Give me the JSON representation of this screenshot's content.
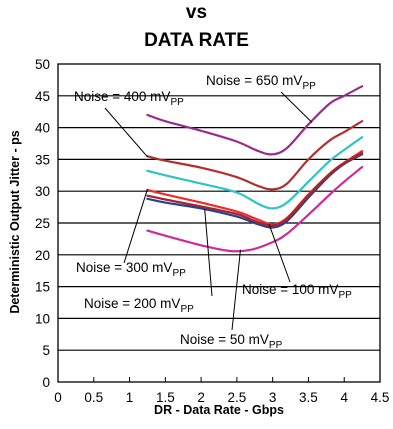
{
  "title_lines": [
    "vs",
    "DATA RATE"
  ],
  "chart_data": {
    "type": "line",
    "xlabel": "DR - Data Rate - Gbps",
    "ylabel": "Deterministic Output Jitter - ps",
    "xlim": [
      0,
      4.5
    ],
    "ylim": [
      0,
      50
    ],
    "xticks": [
      "0",
      "0.5",
      "1",
      "1.5",
      "2",
      "2.5",
      "3",
      "3.5",
      "4",
      "4.5"
    ],
    "yticks": [
      "0",
      "5",
      "10",
      "15",
      "20",
      "25",
      "30",
      "35",
      "40",
      "45",
      "50"
    ],
    "grid": "horizontal",
    "series": [
      {
        "name": "Noise = 650 mV",
        "sub": "PP",
        "color": "#9b2b8f",
        "x": [
          1.25,
          1.5,
          2.0,
          2.5,
          2.8,
          3.0,
          3.2,
          3.5,
          3.8,
          4.0,
          4.25
        ],
        "y": [
          42.0,
          41.0,
          39.5,
          37.8,
          36.3,
          35.8,
          36.8,
          40.5,
          43.8,
          45.0,
          46.5
        ]
      },
      {
        "name": "Noise = 400 mV",
        "sub": "PP",
        "color": "#b03030",
        "x": [
          1.25,
          1.5,
          2.0,
          2.5,
          2.8,
          3.0,
          3.2,
          3.5,
          3.8,
          4.0,
          4.25
        ],
        "y": [
          35.5,
          34.8,
          33.7,
          32.2,
          30.8,
          30.3,
          31.2,
          35.0,
          38.0,
          39.3,
          41.0
        ]
      },
      {
        "name": "",
        "sub": "",
        "color": "#2ec4c4",
        "x": [
          1.25,
          1.5,
          2.0,
          2.5,
          2.8,
          3.0,
          3.2,
          3.5,
          3.8,
          4.0,
          4.25
        ],
        "y": [
          33.2,
          32.5,
          31.2,
          29.8,
          28.0,
          27.3,
          28.2,
          31.5,
          34.8,
          36.5,
          38.5
        ]
      },
      {
        "name": "Noise = 300 mV",
        "sub": "PP",
        "color": "#ee2c2c",
        "x": [
          1.25,
          1.5,
          2.0,
          2.5,
          2.8,
          3.0,
          3.2,
          3.5,
          3.8,
          4.0,
          4.25
        ],
        "y": [
          30.2,
          29.5,
          28.2,
          26.8,
          25.5,
          24.8,
          25.8,
          29.5,
          32.8,
          34.5,
          36.3
        ]
      },
      {
        "name": "Noise = 200 mV",
        "sub": "PP",
        "color": "#2a3e9c",
        "x": [
          1.25,
          1.5,
          2.0,
          2.5,
          2.8,
          3.0,
          3.2,
          3.5,
          3.8,
          4.0,
          4.25
        ],
        "y": [
          28.8,
          28.2,
          27.3,
          26.0,
          24.8,
          24.3,
          25.3,
          29.0,
          32.5,
          34.3,
          35.8
        ]
      },
      {
        "name": "Noise = 100 mV",
        "sub": "PP",
        "color": "#a02828",
        "x": [
          1.25,
          1.5,
          2.0,
          2.5,
          2.8,
          3.0,
          3.2,
          3.5,
          3.8,
          4.0,
          4.25
        ],
        "y": [
          29.3,
          28.7,
          27.6,
          26.4,
          25.1,
          24.6,
          25.6,
          29.3,
          32.7,
          34.4,
          36.0
        ]
      },
      {
        "name": "Noise = 50 mV",
        "sub": "PP",
        "color": "#d02a9a",
        "x": [
          1.25,
          1.5,
          2.0,
          2.4,
          2.7,
          3.0,
          3.2,
          3.5,
          3.8,
          4.0,
          4.25
        ],
        "y": [
          23.8,
          23.0,
          21.5,
          20.6,
          20.8,
          22.0,
          23.3,
          26.3,
          29.5,
          31.5,
          33.8
        ]
      }
    ]
  }
}
